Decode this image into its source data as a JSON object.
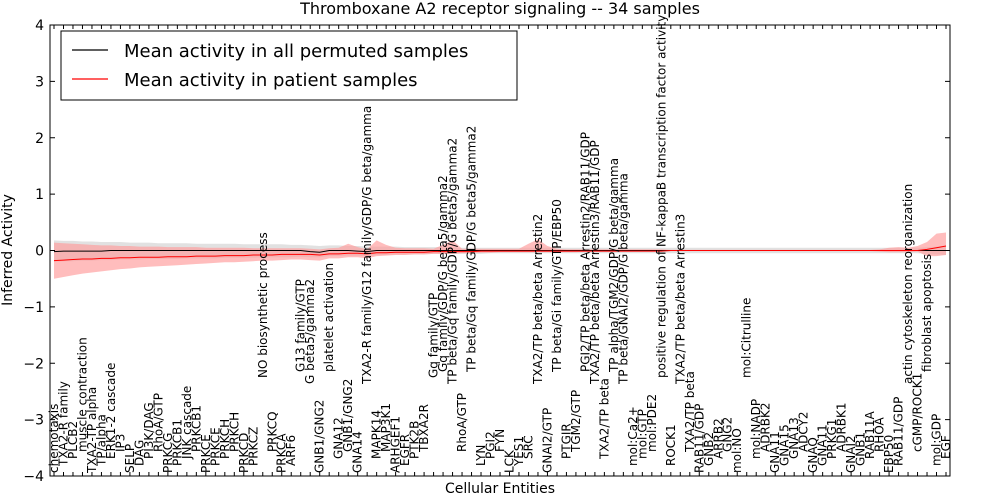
{
  "chart_data": {
    "type": "line",
    "title": "Thromboxane A2 receptor signaling -- 34 samples",
    "xlabel": "Cellular Entities",
    "ylabel": "Inferred Activity",
    "ylim": [
      -4,
      4
    ],
    "yticks": [
      -4,
      -3,
      -2,
      -1,
      0,
      1,
      2,
      3,
      4
    ],
    "legend_placement": "top-left",
    "categories": [
      "chemotaxis",
      "TXA2-R family",
      "PLCB2",
      "muscle contraction",
      "TXA2-TP alpha",
      "TP/alpha",
      "ERK1-2 cascade",
      "IP3",
      "SELP",
      "DAG",
      "PI3K/DAG",
      "RhoA/GTP",
      "PRKCG",
      "PRKCB1",
      "JNK cascade",
      "PRKCB1",
      "PRKCE",
      "PRKCE",
      "PRKCH",
      "PRKCH",
      "PRKCD",
      "PRKCZ",
      "NO biosynthetic process",
      "PRKCQ",
      "PRKCA",
      "ARF6",
      "G13 family/GTP",
      "G beta5/gamma2",
      "GNB1/GNG2",
      "platelet activation",
      "GNA12",
      "GNB1/GNG2",
      "GNA14",
      "TXA2-R family/G12 family/GDP/G beta/gamma",
      "MAPK14",
      "MAP3K1",
      "ARHGEF1",
      "EGFR",
      "PTK2B",
      "TBXA2R",
      "Gq family/GTP",
      "Gq family/GDP/G beta5/gamma2",
      "TP beta/Gq family/GDP/G beta5/gamma2",
      "RhoA/GTP",
      "TP beta/Gq family/GDP/G beta5/gamma2",
      "LYN",
      "PGI2",
      "FYN",
      "LCK",
      "YES1",
      "SRC",
      "TXA2/TP beta/beta Arrestin2",
      "GNAI2/GTP",
      "TP beta/Gi family/GTP/EBP50",
      "PTGIR",
      "TGM2/GTP",
      "PGI2/TP beta/beta Arrestin2/RAB11/GDP",
      "TXA2/TP beta/beta Arrestin3/RAB11/GDP",
      "TXA2/TP beta",
      "TP alpha/TGM2/GDP/G beta/gamma",
      "TP beta/GNAI2/GDP/G beta/gamma",
      "mol:Ca2+",
      "mol:GTP",
      "mol:PDE2",
      "positive regulation of NF-kappaB transcription factor activity",
      "ROCK1",
      "TXA2/TP beta/beta Arrestin3",
      "TXA2/TP beta",
      "RAB11/GDP",
      "GNB2",
      "ARRB2",
      "GNG2",
      "mol:NO",
      "mol:Citrulline",
      "mol:NADP",
      "ADRBK2",
      "GNA11",
      "GNA15",
      "GNA13",
      "ADCY2",
      "GNAQ",
      "GNA11",
      "PRKG1",
      "ADRBK1",
      "GNAI2",
      "GNB1",
      "RAB11A",
      "RHOA",
      "EBP50",
      "RAB11/GDP",
      "actin cytoskeleton reorganization",
      "cGMP/ROCK1",
      "fibroblast apoptosis",
      "mol:GDP",
      "EGF"
    ],
    "upper_labels": [
      {
        "index": 22,
        "text": "NO biosynthetic process"
      },
      {
        "index": 26,
        "text": "G13 family/GTP"
      },
      {
        "index": 27,
        "text": "G beta5/gamma2"
      },
      {
        "index": 29,
        "text": "platelet activation"
      },
      {
        "index": 33,
        "text": "TXA2-R family/G12 family/GDP/G beta/gamma"
      },
      {
        "index": 40,
        "text": "Gq family/GTP"
      },
      {
        "index": 41,
        "text": "Gq family/GDP/G beta5/gamma2"
      },
      {
        "index": 42,
        "text": "TP beta/Gq family/GDP/G beta5/gamma2"
      },
      {
        "index": 44,
        "text": "TP beta/Gq family/GDP/G beta5/gamma2"
      },
      {
        "index": 51,
        "text": "TXA2/TP beta/beta Arrestin2"
      },
      {
        "index": 53,
        "text": "TP beta/Gi family/GTP/EBP50"
      },
      {
        "index": 56,
        "text": "PGI2/TP beta/beta Arrestin2/RAB11/GDP"
      },
      {
        "index": 57,
        "text": "TXA2/TP beta/beta Arrestin3/RAB11/GDP"
      },
      {
        "index": 59,
        "text": "TP alpha/TGM2/GDP/G beta/gamma"
      },
      {
        "index": 60,
        "text": "TP beta/GNAI2/GDP/G beta/gamma"
      },
      {
        "index": 64,
        "text": "positive regulation of NF-kappaB transcription factor activity"
      },
      {
        "index": 66,
        "text": "TXA2/TP beta/beta Arrestin3"
      },
      {
        "index": 73,
        "text": "mol:Citrulline"
      },
      {
        "index": 90,
        "text": "actin cytoskeleton reorganization"
      },
      {
        "index": 92,
        "text": "fibroblast apoptosis"
      }
    ],
    "series": [
      {
        "name": "Mean activity in all permuted samples",
        "color": "#000000",
        "band_color": "#c8c8c8",
        "values": [
          -0.02,
          -0.01,
          -0.01,
          -0.01,
          -0.01,
          -0.01,
          0.0,
          0.0,
          0.0,
          0.0,
          0.0,
          0.0,
          0.0,
          0.0,
          0.0,
          0.0,
          0.0,
          0.0,
          0.0,
          0.0,
          0.0,
          0.0,
          0.0,
          0.0,
          0.0,
          0.0,
          0.0,
          -0.02,
          -0.03,
          0.0,
          0.0,
          0.0,
          -0.01,
          -0.02,
          0.0,
          0.0,
          0.0,
          0.0,
          0.0,
          0.0,
          0.0,
          0.0,
          0.0,
          0.0,
          0.0,
          0.0,
          0.0,
          0.0,
          0.0,
          0.0,
          0.0,
          0.0,
          0.0,
          0.0,
          0.0,
          0.0,
          0.0,
          0.0,
          0.0,
          0.0,
          0.0,
          0.0,
          0.0,
          0.0,
          0.0,
          0.0,
          0.0,
          0.0,
          0.0,
          0.0,
          0.0,
          0.0,
          0.0,
          0.0,
          0.0,
          0.0,
          0.0,
          0.0,
          0.0,
          0.0,
          0.0,
          0.0,
          0.0,
          0.0,
          0.0,
          0.0,
          0.0,
          0.0,
          0.0,
          0.0,
          0.0,
          0.0,
          0.0,
          0.0,
          0.0
        ],
        "band_lower": [
          -0.2,
          -0.19,
          -0.19,
          -0.18,
          -0.18,
          -0.17,
          -0.17,
          -0.16,
          -0.16,
          -0.16,
          -0.15,
          -0.15,
          -0.15,
          -0.15,
          -0.14,
          -0.14,
          -0.14,
          -0.14,
          -0.13,
          -0.13,
          -0.13,
          -0.13,
          -0.12,
          -0.12,
          -0.12,
          -0.12,
          -0.11,
          -0.12,
          -0.12,
          -0.1,
          -0.1,
          -0.09,
          -0.09,
          -0.1,
          -0.08,
          -0.08,
          -0.07,
          -0.07,
          -0.07,
          -0.07,
          -0.06,
          -0.06,
          -0.06,
          -0.06,
          -0.06,
          -0.06,
          -0.05,
          -0.05,
          -0.05,
          -0.05,
          -0.05,
          -0.05,
          -0.05,
          -0.05,
          -0.05,
          -0.05,
          -0.05,
          -0.05,
          -0.05,
          -0.05,
          -0.05,
          -0.05,
          -0.05,
          -0.05,
          -0.05,
          -0.05,
          -0.05,
          -0.05,
          -0.05,
          -0.05,
          -0.05,
          -0.05,
          -0.05,
          -0.05,
          -0.05,
          -0.05,
          -0.05,
          -0.05,
          -0.05,
          -0.05,
          -0.05,
          -0.05,
          -0.05,
          -0.05,
          -0.05,
          -0.05,
          -0.05,
          -0.05,
          -0.05,
          -0.05,
          -0.05,
          -0.05,
          -0.06,
          -0.07,
          -0.08
        ],
        "band_upper": [
          0.18,
          0.17,
          0.17,
          0.16,
          0.16,
          0.15,
          0.15,
          0.15,
          0.14,
          0.14,
          0.14,
          0.13,
          0.13,
          0.13,
          0.13,
          0.12,
          0.12,
          0.12,
          0.12,
          0.12,
          0.11,
          0.11,
          0.11,
          0.11,
          0.11,
          0.1,
          0.1,
          0.09,
          0.08,
          0.09,
          0.09,
          0.08,
          0.08,
          0.07,
          0.07,
          0.07,
          0.07,
          0.06,
          0.06,
          0.06,
          0.06,
          0.06,
          0.05,
          0.05,
          0.05,
          0.05,
          0.05,
          0.05,
          0.05,
          0.05,
          0.05,
          0.05,
          0.05,
          0.05,
          0.05,
          0.05,
          0.05,
          0.05,
          0.05,
          0.05,
          0.05,
          0.05,
          0.05,
          0.05,
          0.05,
          0.05,
          0.05,
          0.05,
          0.05,
          0.05,
          0.05,
          0.05,
          0.05,
          0.05,
          0.05,
          0.05,
          0.05,
          0.05,
          0.05,
          0.05,
          0.05,
          0.05,
          0.05,
          0.05,
          0.05,
          0.05,
          0.05,
          0.05,
          0.05,
          0.05,
          0.05,
          0.05,
          0.06,
          0.07,
          0.08
        ]
      },
      {
        "name": "Mean activity in patient samples",
        "color": "#ff0000",
        "band_color": "#ff9a9a",
        "values": [
          -0.18,
          -0.17,
          -0.16,
          -0.15,
          -0.15,
          -0.14,
          -0.14,
          -0.13,
          -0.13,
          -0.12,
          -0.12,
          -0.12,
          -0.11,
          -0.11,
          -0.11,
          -0.1,
          -0.1,
          -0.1,
          -0.09,
          -0.09,
          -0.09,
          -0.08,
          -0.08,
          -0.08,
          -0.07,
          -0.07,
          -0.07,
          -0.07,
          -0.08,
          -0.06,
          -0.06,
          -0.05,
          -0.05,
          -0.06,
          -0.04,
          -0.04,
          -0.03,
          -0.03,
          -0.03,
          -0.03,
          -0.02,
          -0.02,
          -0.02,
          -0.02,
          -0.02,
          -0.01,
          -0.01,
          -0.01,
          -0.01,
          -0.01,
          -0.01,
          -0.01,
          -0.01,
          -0.01,
          -0.01,
          -0.01,
          -0.01,
          -0.01,
          -0.01,
          -0.01,
          -0.01,
          -0.01,
          -0.01,
          -0.01,
          -0.01,
          0.0,
          0.0,
          0.0,
          0.0,
          0.0,
          0.0,
          0.0,
          0.0,
          0.0,
          0.0,
          0.0,
          0.0,
          0.0,
          0.0,
          0.0,
          0.0,
          0.0,
          0.0,
          0.0,
          0.0,
          0.0,
          0.0,
          0.0,
          0.0,
          0.0,
          0.0,
          0.0,
          0.02,
          0.05,
          0.08
        ],
        "band_lower": [
          -0.5,
          -0.47,
          -0.44,
          -0.41,
          -0.39,
          -0.37,
          -0.35,
          -0.33,
          -0.32,
          -0.3,
          -0.29,
          -0.28,
          -0.27,
          -0.26,
          -0.25,
          -0.24,
          -0.23,
          -0.22,
          -0.21,
          -0.21,
          -0.2,
          -0.19,
          -0.18,
          -0.18,
          -0.17,
          -0.16,
          -0.16,
          -0.17,
          -0.18,
          -0.14,
          -0.14,
          -0.12,
          -0.12,
          -0.14,
          -0.1,
          -0.09,
          -0.08,
          -0.08,
          -0.07,
          -0.07,
          -0.06,
          -0.06,
          -0.06,
          -0.05,
          -0.05,
          -0.04,
          -0.04,
          -0.03,
          -0.03,
          -0.03,
          -0.03,
          -0.03,
          -0.03,
          -0.03,
          -0.03,
          -0.03,
          -0.02,
          -0.02,
          -0.02,
          -0.02,
          -0.02,
          -0.02,
          -0.02,
          -0.02,
          -0.02,
          -0.01,
          -0.01,
          -0.01,
          -0.01,
          -0.01,
          -0.01,
          -0.01,
          -0.01,
          -0.01,
          -0.01,
          -0.01,
          -0.01,
          -0.01,
          -0.01,
          -0.01,
          -0.01,
          -0.01,
          -0.01,
          -0.01,
          -0.01,
          -0.01,
          -0.01,
          -0.02,
          -0.03,
          -0.03,
          -0.03,
          -0.02,
          -0.1,
          -0.1,
          -0.08
        ],
        "band_upper": [
          0.14,
          0.13,
          0.12,
          0.11,
          0.1,
          0.09,
          0.09,
          0.08,
          0.08,
          0.07,
          0.07,
          0.07,
          0.06,
          0.06,
          0.06,
          0.06,
          0.05,
          0.05,
          0.05,
          0.05,
          0.05,
          0.04,
          0.04,
          0.04,
          0.04,
          0.04,
          0.04,
          0.03,
          0.02,
          0.04,
          0.05,
          0.12,
          0.06,
          0.02,
          0.18,
          0.1,
          0.05,
          0.04,
          0.04,
          0.04,
          0.03,
          0.1,
          0.18,
          0.03,
          0.03,
          0.03,
          0.03,
          0.03,
          0.03,
          0.03,
          0.12,
          0.2,
          0.08,
          0.03,
          0.02,
          0.02,
          0.02,
          0.02,
          0.02,
          0.02,
          0.02,
          0.02,
          0.02,
          0.02,
          0.02,
          0.01,
          0.01,
          0.01,
          0.01,
          0.01,
          0.01,
          0.01,
          0.01,
          0.01,
          0.01,
          0.01,
          0.01,
          0.01,
          0.01,
          0.01,
          0.01,
          0.01,
          0.01,
          0.01,
          0.01,
          0.01,
          0.01,
          0.02,
          0.05,
          0.06,
          0.05,
          0.08,
          0.15,
          0.3,
          0.32
        ]
      }
    ]
  }
}
